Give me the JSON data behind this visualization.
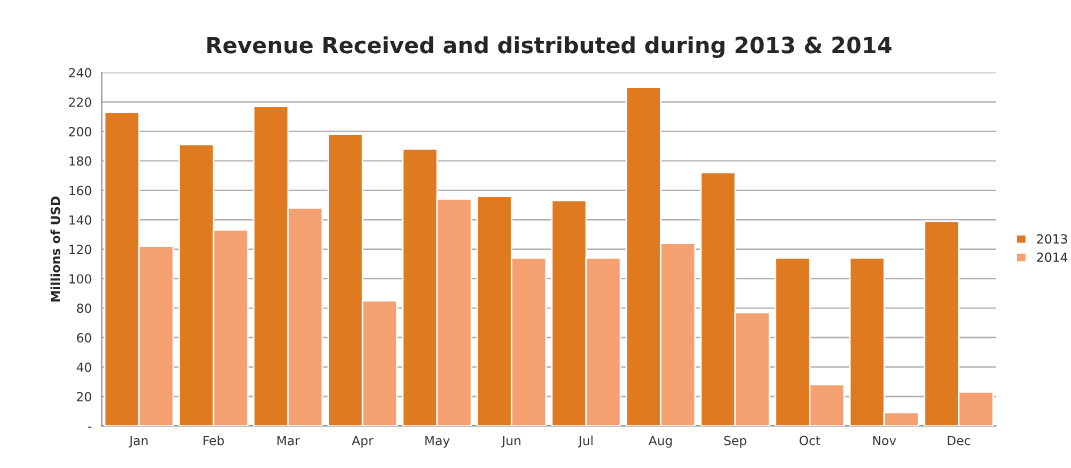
{
  "chart_data": {
    "type": "bar",
    "title": "Revenue Received and distributed during 2013 & 2014",
    "ylabel": "Millions of USD",
    "categories": [
      "Jan",
      "Feb",
      "Mar",
      "Apr",
      "May",
      "Jun",
      "Jul",
      "Aug",
      "Sep",
      "Oct",
      "Nov",
      "Dec"
    ],
    "series": [
      {
        "name": "2013",
        "color": "#e07a20",
        "values": [
          213,
          191,
          217,
          198,
          188,
          156,
          153,
          230,
          172,
          114,
          114,
          139
        ]
      },
      {
        "name": "2014",
        "color": "#f4a070",
        "values": [
          122,
          133,
          148,
          85,
          154,
          114,
          114,
          124,
          77,
          28,
          9,
          23
        ]
      }
    ],
    "ylim": [
      0,
      240
    ],
    "yticks": [
      {
        "value": 0,
        "label": "-"
      },
      20,
      40,
      60,
      80,
      100,
      120,
      140,
      160,
      180,
      200,
      220,
      240
    ],
    "grid": "y",
    "legend": "right"
  }
}
